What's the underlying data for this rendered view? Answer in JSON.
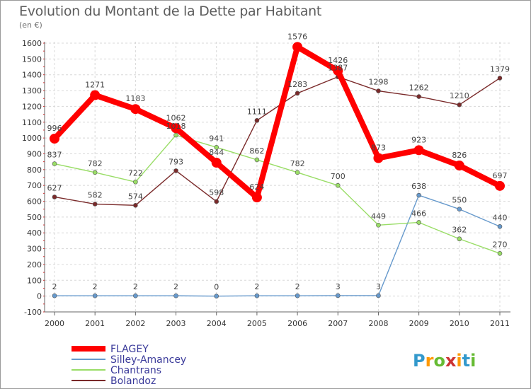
{
  "title": "Evolution du Montant de la Dette par Habitant",
  "unit": "(en €)",
  "logo_text": "Proxiti",
  "chart_data": {
    "type": "line",
    "title": "Evolution du Montant de la Dette par Habitant",
    "subtitle": "(en €)",
    "categories": [
      "2000",
      "2001",
      "2002",
      "2003",
      "2004",
      "2005",
      "2006",
      "2007",
      "2008",
      "2009",
      "2010",
      "2011"
    ],
    "ylim": [
      -100,
      1600
    ],
    "yticks": [
      -100,
      0,
      100,
      200,
      300,
      400,
      500,
      600,
      700,
      800,
      900,
      1000,
      1100,
      1200,
      1300,
      1400,
      1500,
      1600
    ],
    "grid": true,
    "legend_position": "bottom-left",
    "series": [
      {
        "name": "FLAGEY",
        "color": "#ff0000",
        "values": [
          996,
          1271,
          1183,
          1062,
          844,
          624,
          1576,
          1426,
          873,
          923,
          826,
          697
        ]
      },
      {
        "name": "Silley-Amancey",
        "color": "#6699cc",
        "values": [
          2,
          2,
          2,
          2,
          0,
          2,
          2,
          3,
          3,
          638,
          550,
          440
        ]
      },
      {
        "name": "Chantrans",
        "color": "#99dd66",
        "values": [
          837,
          782,
          722,
          1018,
          941,
          862,
          782,
          700,
          449,
          466,
          362,
          270
        ]
      },
      {
        "name": "Bolandoz",
        "color": "#7a2a2a",
        "values": [
          627,
          582,
          574,
          793,
          598,
          1111,
          1283,
          1387,
          1298,
          1262,
          1210,
          1379
        ]
      }
    ]
  }
}
